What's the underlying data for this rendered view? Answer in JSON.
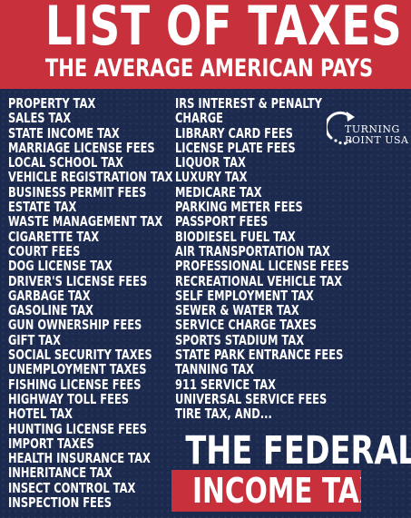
{
  "header": {
    "title": "LIST OF TAXES",
    "subtitle": "THE AVERAGE AMERICAN PAYS"
  },
  "logo": {
    "line1": "TURNING",
    "line2": "POINT USA",
    "icon": "circular-arrow-icon"
  },
  "taxes": {
    "left": [
      "PROPERTY TAX",
      "SALES TAX",
      "STATE INCOME TAX",
      "MARRIAGE LICENSE FEES",
      "LOCAL SCHOOL TAX",
      "VEHICLE REGISTRATION TAX",
      "BUSINESS PERMIT FEES",
      "ESTATE TAX",
      "WASTE MANAGEMENT TAX",
      "CIGARETTE TAX",
      "COURT FEES",
      "DOG LICENSE TAX",
      "DRIVER'S LICENSE FEES",
      "GARBAGE TAX",
      "GASOLINE TAX",
      "GUN OWNERSHIP FEES",
      "GIFT TAX",
      "SOCIAL SECURITY TAXES",
      "UNEMPLOYMENT TAXES",
      "FISHING LICENSE FEES",
      "HIGHWAY TOLL FEES",
      "HOTEL TAX",
      "HUNTING LICENSE FEES",
      "IMPORT TAXES",
      "HEALTH INSURANCE TAX",
      "INHERITANCE TAX",
      "INSECT CONTROL TAX",
      "INSPECTION FEES"
    ],
    "right": [
      "IRS INTEREST & PENALTY",
      "CHARGE",
      "LIBRARY CARD FEES",
      "LICENSE PLATE FEES",
      "LIQUOR TAX",
      "LUXURY TAX",
      "MEDICARE TAX",
      "PARKING METER FEES",
      "PASSPORT FEES",
      "BIODIESEL FUEL TAX",
      "AIR TRANSPORTATION TAX",
      "PROFESSIONAL LICENSE FEES",
      "RECREATIONAL VEHICLE TAX",
      "SELF EMPLOYMENT TAX",
      "SEWER & WATER TAX",
      "SERVICE CHARGE TAXES",
      "SPORTS STADIUM TAX",
      "STATE PARK ENTRANCE FEES",
      "TANNING TAX",
      "911 SERVICE TAX",
      "UNIVERSAL SERVICE FEES",
      "TIRE TAX, AND..."
    ]
  },
  "finale": {
    "line1": "THE FEDERAL",
    "line2": "INCOME TAX!"
  },
  "colors": {
    "background": "#1b2a4e",
    "accent": "#c8303c",
    "text": "#ffffff"
  }
}
